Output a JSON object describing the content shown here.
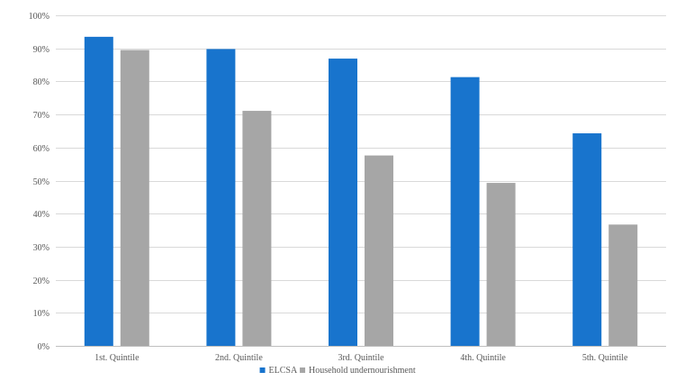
{
  "chart_data": {
    "type": "bar",
    "title": "",
    "xlabel": "",
    "ylabel": "",
    "categories": [
      "1st. Quintile",
      "2nd. Quintile",
      "3rd. Quintile",
      "4th. Quintile",
      "5th. Quintile"
    ],
    "series": [
      {
        "name": "ELCSA",
        "values": [
          0.935,
          0.898,
          0.869,
          0.813,
          0.643
        ]
      },
      {
        "name": "Household undernourishment",
        "values": [
          0.895,
          0.711,
          0.576,
          0.493,
          0.367
        ]
      }
    ],
    "ylim": [
      0,
      1
    ],
    "y_ticks": [
      "0%",
      "10%",
      "20%",
      "30%",
      "40%",
      "50%",
      "60%",
      "70%",
      "80%",
      "90%",
      "100%"
    ],
    "grid": true,
    "legend_position": "bottom",
    "colors": {
      "ELCSA": "#1874CD",
      "Household undernourishment": "#A6A6A6",
      "grid": "#D9D9D9"
    }
  }
}
